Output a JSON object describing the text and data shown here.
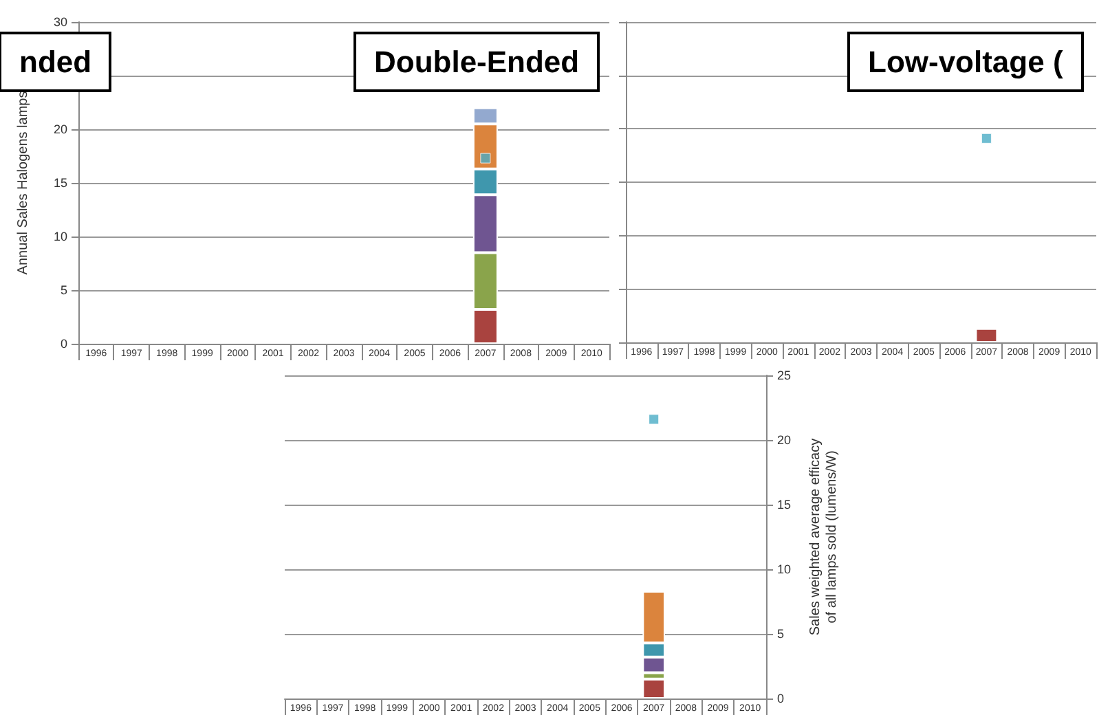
{
  "chart_data": [
    {
      "type": "bar",
      "title": "Double-Ended",
      "ylabel": "Annual Sales Halogens lamps",
      "annotations": [
        "nded"
      ],
      "categories": [
        "1996",
        "1997",
        "1998",
        "1999",
        "2000",
        "2001",
        "2002",
        "2003",
        "2004",
        "2005",
        "2006",
        "2007",
        "2008",
        "2009",
        "2010"
      ],
      "stacked": true,
      "series": [
        {
          "color": "#a9433f",
          "values": [
            null,
            null,
            null,
            null,
            null,
            null,
            null,
            null,
            null,
            null,
            null,
            3.2,
            null,
            null,
            null
          ]
        },
        {
          "color": "#8aa44b",
          "values": [
            null,
            null,
            null,
            null,
            null,
            null,
            null,
            null,
            null,
            null,
            null,
            5.3,
            null,
            null,
            null
          ]
        },
        {
          "color": "#6f5591",
          "values": [
            null,
            null,
            null,
            null,
            null,
            null,
            null,
            null,
            null,
            null,
            null,
            5.4,
            null,
            null,
            null
          ]
        },
        {
          "color": "#3f97ad",
          "values": [
            null,
            null,
            null,
            null,
            null,
            null,
            null,
            null,
            null,
            null,
            null,
            2.4,
            null,
            null,
            null
          ]
        },
        {
          "color": "#db843d",
          "values": [
            null,
            null,
            null,
            null,
            null,
            null,
            null,
            null,
            null,
            null,
            null,
            4.2,
            null,
            null,
            null
          ]
        },
        {
          "color": "#93a9cf",
          "values": [
            null,
            null,
            null,
            null,
            null,
            null,
            null,
            null,
            null,
            null,
            null,
            1.5,
            null,
            null,
            null
          ]
        },
        {
          "type": "scatter",
          "color": "#4bacc6",
          "values": [
            null,
            null,
            null,
            null,
            null,
            null,
            null,
            null,
            null,
            null,
            null,
            17.3,
            null,
            null,
            null
          ]
        }
      ],
      "ylim": [
        0,
        30
      ],
      "yticks": [
        0,
        5,
        10,
        15,
        20,
        {
          "value": 25,
          "label": null
        },
        30
      ],
      "grid": "y",
      "marker": "square"
    },
    {
      "type": "bar",
      "title": "Low-voltage (",
      "categories": [
        "1996",
        "1997",
        "1998",
        "1999",
        "2000",
        "2001",
        "2002",
        "2003",
        "2004",
        "2005",
        "2006",
        "2007",
        "2008",
        "2009",
        "2010"
      ],
      "stacked": true,
      "series": [
        {
          "color": "#a9433f",
          "values": [
            null,
            null,
            null,
            null,
            null,
            null,
            null,
            null,
            null,
            null,
            null,
            1.3,
            null,
            null,
            null
          ]
        },
        {
          "type": "scatter",
          "color": "#4bacc6",
          "values": [
            null,
            null,
            null,
            null,
            null,
            null,
            null,
            null,
            null,
            null,
            null,
            19.1,
            null,
            null,
            null
          ]
        }
      ],
      "ylim": [
        0,
        30
      ],
      "yticks": [
        0,
        5,
        10,
        15,
        20,
        25,
        30
      ],
      "tick_labels": "x",
      "grid": "y",
      "marker": "square"
    },
    {
      "type": "bar",
      "y2label": "Sales weighted average efficacy of all lamps sold (lumens/W)",
      "categories": [
        "1996",
        "1997",
        "1998",
        "1999",
        "2000",
        "2001",
        "2002",
        "2003",
        "2004",
        "2005",
        "2006",
        "2007",
        "2008",
        "2009",
        "2010"
      ],
      "stacked": true,
      "series": [
        {
          "color": "#a9433f",
          "axis": "y2",
          "values": [
            null,
            null,
            null,
            null,
            null,
            null,
            null,
            null,
            null,
            null,
            null,
            1.5,
            null,
            null,
            null
          ]
        },
        {
          "color": "#8aa44b",
          "axis": "y2",
          "values": [
            null,
            null,
            null,
            null,
            null,
            null,
            null,
            null,
            null,
            null,
            null,
            0.5,
            null,
            null,
            null
          ]
        },
        {
          "color": "#6f5591",
          "axis": "y2",
          "values": [
            null,
            null,
            null,
            null,
            null,
            null,
            null,
            null,
            null,
            null,
            null,
            1.2,
            null,
            null,
            null
          ]
        },
        {
          "color": "#3f97ad",
          "axis": "y2",
          "values": [
            null,
            null,
            null,
            null,
            null,
            null,
            null,
            null,
            null,
            null,
            null,
            1.1,
            null,
            null,
            null
          ]
        },
        {
          "color": "#db843d",
          "axis": "y2",
          "values": [
            null,
            null,
            null,
            null,
            null,
            null,
            null,
            null,
            null,
            null,
            null,
            4.0,
            null,
            null,
            null
          ]
        },
        {
          "type": "scatter",
          "color": "#4bacc6",
          "axis": "y2",
          "values": [
            null,
            null,
            null,
            null,
            null,
            null,
            null,
            null,
            null,
            null,
            null,
            21.6,
            null,
            null,
            null
          ]
        }
      ],
      "y2lim": [
        0,
        25
      ],
      "y2ticks": [
        0,
        5,
        10,
        15,
        20,
        25
      ],
      "grid": "y",
      "marker": "square"
    }
  ]
}
